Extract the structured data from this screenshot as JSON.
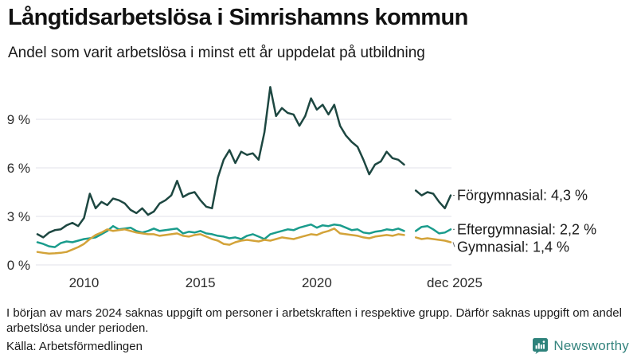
{
  "header": {
    "title": "Långtidsarbetslösa i Simrishamns kommun",
    "subtitle": "Andel som varit arbetslösa i minst ett år uppdelat på utbildning"
  },
  "chart_data": {
    "type": "line",
    "title": "Långtidsarbetslösa i Simrishamns kommun",
    "subtitle": "Andel som varit arbetslösa i minst ett år uppdelat på utbildning",
    "unit": "percent",
    "grid": true,
    "legend_position": "end-of-line-labels-right",
    "x_start": 2008.0,
    "x_step": 0.25,
    "x_domain": [
      2008.0,
      2025.92
    ],
    "x_ticks": [
      {
        "label": "2010",
        "t": 2010
      },
      {
        "label": "2015",
        "t": 2015
      },
      {
        "label": "2020",
        "t": 2020
      },
      {
        "label": "dec 2025",
        "t": 2025.92
      }
    ],
    "y_ticks": [
      {
        "label": "0 %",
        "value": 0
      },
      {
        "label": "3 %",
        "value": 3
      },
      {
        "label": "6 %",
        "value": 6
      },
      {
        "label": "9 %",
        "value": 9
      }
    ],
    "ylim": [
      0,
      11.46
    ],
    "data_gap": {
      "period": "mars 2024",
      "note": "värden saknas"
    },
    "series": [
      {
        "name": "Förgymnasial",
        "end_label": "Förgymnasial: 4,3 %",
        "end_value": "4,3 %",
        "color": "#1d4741",
        "values": [
          1.9,
          1.7,
          2.0,
          2.15,
          2.2,
          2.45,
          2.6,
          2.4,
          2.9,
          4.4,
          3.5,
          3.9,
          3.7,
          4.1,
          4.0,
          3.8,
          3.4,
          3.2,
          3.5,
          3.1,
          3.3,
          3.8,
          4.0,
          4.3,
          5.2,
          4.2,
          4.4,
          4.5,
          4.0,
          3.6,
          3.5,
          5.4,
          6.5,
          7.1,
          6.3,
          7.0,
          6.8,
          6.9,
          6.5,
          8.2,
          11.0,
          9.2,
          9.7,
          9.4,
          9.3,
          8.6,
          9.2,
          10.3,
          9.6,
          9.9,
          9.3,
          9.9,
          8.6,
          8.0,
          7.6,
          7.3,
          6.5,
          5.6,
          6.2,
          6.4,
          7.0,
          6.6,
          6.5,
          6.2,
          null,
          4.6,
          4.3,
          4.5,
          4.4,
          3.9,
          3.5,
          4.3
        ]
      },
      {
        "name": "Eftergymnasial",
        "end_label": "Eftergymnasial: 2,2 %",
        "end_value": "2,2 %",
        "color": "#1a9c8c",
        "values": [
          1.4,
          1.3,
          1.15,
          1.1,
          1.35,
          1.45,
          1.4,
          1.5,
          1.6,
          1.65,
          1.7,
          1.9,
          2.1,
          2.4,
          2.2,
          2.25,
          2.3,
          2.1,
          2.0,
          2.1,
          2.25,
          2.1,
          2.15,
          2.2,
          2.25,
          1.95,
          2.05,
          2.0,
          2.1,
          1.95,
          1.9,
          1.8,
          1.75,
          1.65,
          1.7,
          1.6,
          1.8,
          1.9,
          1.75,
          1.6,
          1.9,
          2.0,
          2.1,
          2.2,
          2.15,
          2.3,
          2.4,
          2.5,
          2.3,
          2.45,
          2.4,
          2.5,
          2.45,
          2.3,
          2.15,
          2.2,
          2.0,
          1.95,
          2.05,
          2.1,
          2.2,
          2.15,
          2.25,
          2.1,
          null,
          2.1,
          2.35,
          2.4,
          2.2,
          1.95,
          2.0,
          2.2
        ]
      },
      {
        "name": "Gymnasial",
        "end_label": "Gymnasial: 1,4 %",
        "end_value": "1,4 %",
        "color": "#d3a339",
        "values": [
          0.8,
          0.75,
          0.7,
          0.72,
          0.75,
          0.8,
          0.95,
          1.1,
          1.3,
          1.6,
          1.85,
          2.0,
          2.2,
          2.1,
          2.15,
          2.2,
          2.1,
          2.0,
          1.95,
          1.9,
          1.9,
          1.8,
          1.85,
          1.9,
          1.95,
          1.8,
          1.75,
          1.85,
          1.9,
          1.75,
          1.6,
          1.5,
          1.3,
          1.25,
          1.4,
          1.5,
          1.55,
          1.5,
          1.45,
          1.55,
          1.5,
          1.6,
          1.7,
          1.65,
          1.6,
          1.7,
          1.8,
          1.9,
          1.85,
          2.0,
          2.1,
          2.25,
          1.95,
          1.9,
          1.85,
          1.8,
          1.7,
          1.65,
          1.75,
          1.8,
          1.85,
          1.8,
          1.9,
          1.85,
          null,
          1.7,
          1.6,
          1.65,
          1.6,
          1.55,
          1.5,
          1.4
        ]
      }
    ]
  },
  "footer": {
    "note": "I början av mars 2024 saknas uppgift om personer i arbetskraften i respektive grupp. Därför saknas uppgift om andel arbetslösa under perioden.",
    "source": "Källa: Arbetsförmedlingen"
  },
  "branding": {
    "name": "Newsworthy",
    "brand_color": "#35847e",
    "icon": "newsworthy-speech-bubble-chart-icon"
  }
}
